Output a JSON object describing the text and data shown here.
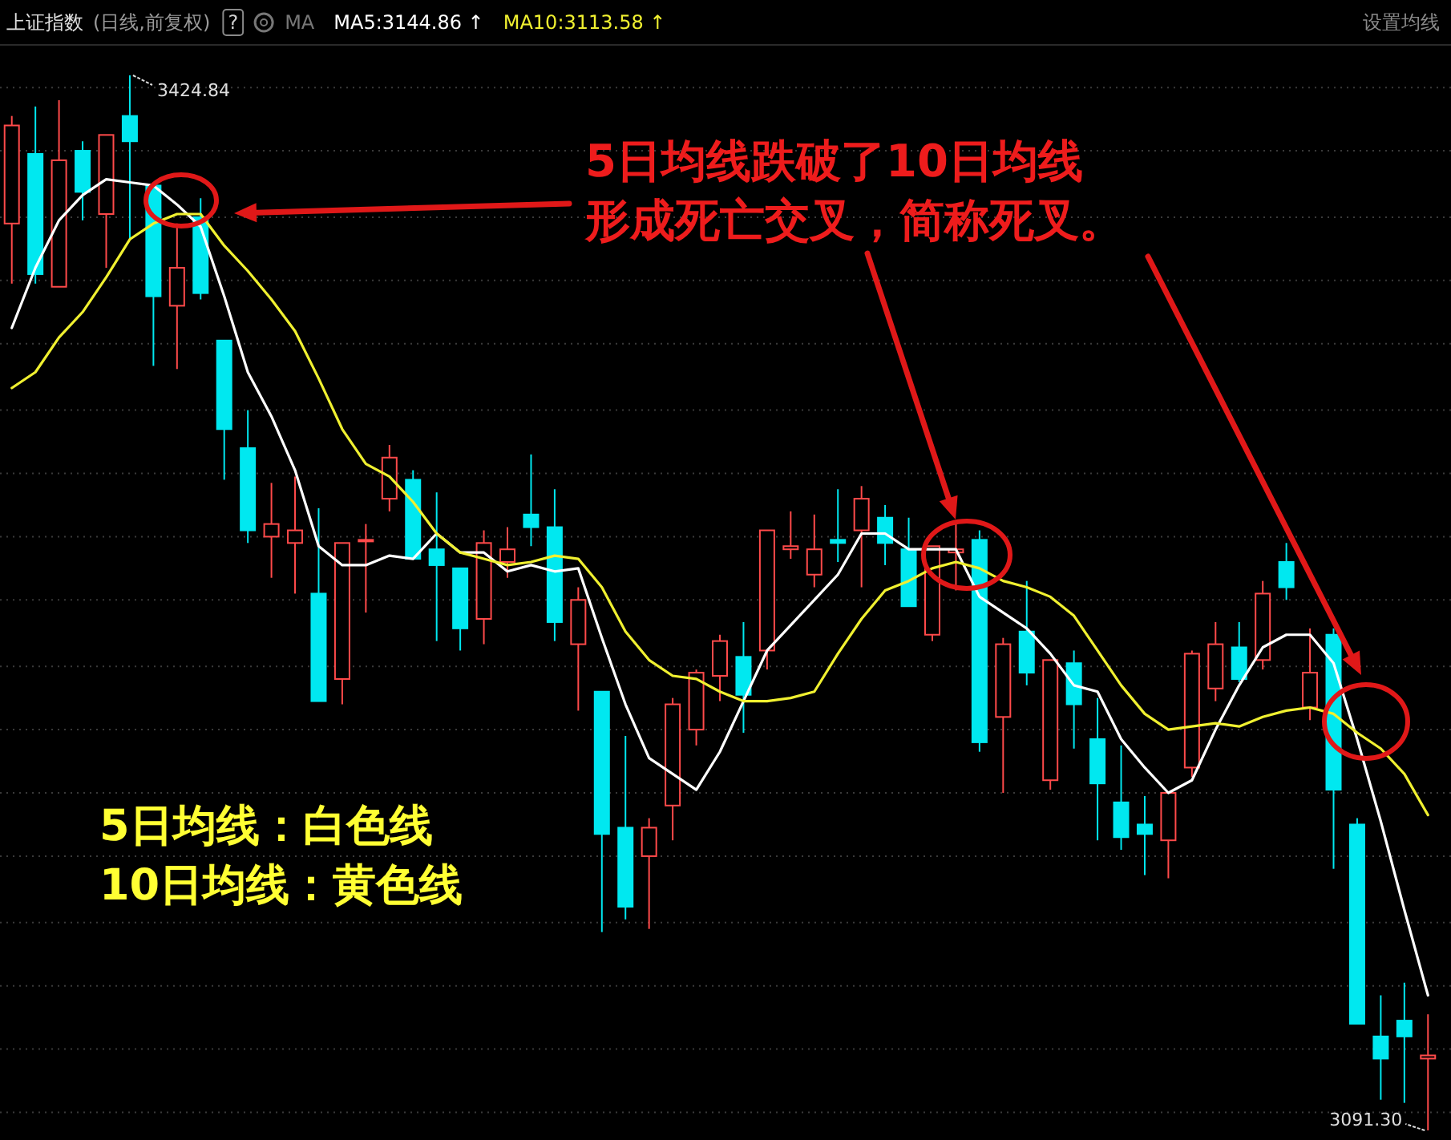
{
  "chart_data": {
    "type": "candlestick",
    "title": "上证指数",
    "subtitle": "(日线,前复权)",
    "categories": [
      null,
      null,
      null,
      null,
      null,
      null,
      null,
      null,
      null,
      null,
      null,
      null,
      null,
      null,
      null,
      null,
      null,
      null,
      null,
      null,
      null,
      null,
      null,
      null,
      null,
      null,
      null,
      null,
      null,
      null,
      null,
      null,
      null,
      null,
      null,
      null,
      null,
      null,
      null,
      null,
      null,
      null,
      null,
      null,
      null,
      null,
      null,
      null,
      null,
      null,
      null,
      null,
      null,
      null,
      null,
      null,
      null,
      null,
      null,
      null,
      null
    ],
    "ohlc": [
      [
        3378,
        3412,
        3359,
        3409
      ],
      [
        3400,
        3415,
        3359,
        3362
      ],
      [
        3358,
        3417,
        3358,
        3398
      ],
      [
        3401,
        3404,
        3379,
        3388
      ],
      [
        3381,
        3406,
        3364,
        3406
      ],
      [
        3412,
        3424.84,
        3373,
        3404
      ],
      [
        3390,
        3390,
        3333,
        3355
      ],
      [
        3352,
        3378,
        3332,
        3364
      ],
      [
        3380,
        3386,
        3354,
        3356
      ],
      [
        3341,
        3341,
        3297,
        3313
      ],
      [
        3307,
        3319,
        3277,
        3281
      ],
      [
        3279,
        3296,
        3266,
        3283
      ],
      [
        3277,
        3298,
        3261,
        3281
      ],
      [
        3261,
        3288,
        3227,
        3227
      ],
      [
        3234,
        3277,
        3226,
        3277
      ],
      [
        3278,
        3283,
        3255,
        3278
      ],
      [
        3291,
        3308,
        3287,
        3304
      ],
      [
        3297,
        3300,
        3272,
        3272
      ],
      [
        3275,
        3293,
        3246,
        3270
      ],
      [
        3269,
        3269,
        3243,
        3250
      ],
      [
        3253,
        3281,
        3245,
        3277
      ],
      [
        3271,
        3282,
        3266,
        3275
      ],
      [
        3286,
        3305,
        3276,
        3282
      ],
      [
        3282,
        3294,
        3246,
        3252
      ],
      [
        3245,
        3263,
        3224,
        3259
      ],
      [
        3230,
        3230,
        3154,
        3185
      ],
      [
        3187,
        3216,
        3158,
        3162
      ],
      [
        3178,
        3190,
        3155,
        3187
      ],
      [
        3194,
        3228,
        3183,
        3226
      ],
      [
        3218,
        3237,
        3213,
        3236
      ],
      [
        3235,
        3248,
        3227,
        3246
      ],
      [
        3241,
        3252,
        3217,
        3229
      ],
      [
        3243,
        3281,
        3237,
        3281
      ],
      [
        3275,
        3287,
        3272,
        3276
      ],
      [
        3267,
        3286,
        3263,
        3275
      ],
      [
        3278,
        3294,
        3271,
        3277
      ],
      [
        3281,
        3295,
        3263,
        3291
      ],
      [
        3285,
        3289,
        3270,
        3277
      ],
      [
        3275,
        3285,
        3257,
        3257
      ],
      [
        3248,
        3276,
        3246,
        3276
      ],
      [
        3274,
        3284,
        3262,
        3275
      ],
      [
        3278,
        3281,
        3211,
        3214
      ],
      [
        3222,
        3247,
        3198,
        3245
      ],
      [
        3249,
        3265,
        3232,
        3236
      ],
      [
        3202,
        3240,
        3199,
        3240
      ],
      [
        3239,
        3243,
        3212,
        3226
      ],
      [
        3215,
        3228,
        3183,
        3201
      ],
      [
        3195,
        3213,
        3180,
        3184
      ],
      [
        3188,
        3197,
        3172,
        3185
      ],
      [
        3183,
        3198,
        3171,
        3198
      ],
      [
        3206,
        3243,
        3203,
        3242
      ],
      [
        3231,
        3252,
        3227,
        3245
      ],
      [
        3244,
        3252,
        3233,
        3234
      ],
      [
        3240,
        3265,
        3237,
        3261
      ],
      [
        3271,
        3277,
        3259,
        3263
      ],
      [
        3225,
        3250,
        3221,
        3236
      ],
      [
        3248,
        3250,
        3174,
        3199
      ],
      [
        3188,
        3190,
        3125,
        3125
      ],
      [
        3121,
        3134,
        3101,
        3114
      ],
      [
        3126,
        3138,
        3100,
        3121
      ],
      [
        3114,
        3128,
        3091.3,
        3115
      ]
    ],
    "colors": [
      "#ff4a4a",
      "#00e8f0",
      "#ff4a4a",
      "#00e8f0",
      "#ff4a4a",
      "#00e8f0",
      "#00e8f0",
      "#ff4a4a",
      "#00e8f0",
      "#00e8f0",
      "#00e8f0",
      "#ff4a4a",
      "#ff4a4a",
      "#00e8f0",
      "#ff4a4a",
      "#ff4a4a",
      "#ff4a4a",
      "#00e8f0",
      "#00e8f0",
      "#00e8f0",
      "#ff4a4a",
      "#ff4a4a",
      "#00e8f0",
      "#00e8f0",
      "#ff4a4a",
      "#00e8f0",
      "#00e8f0",
      "#ff4a4a",
      "#ff4a4a",
      "#ff4a4a",
      "#ff4a4a",
      "#00e8f0",
      "#ff4a4a",
      "#ff4a4a",
      "#ff4a4a",
      "#00e8f0",
      "#ff4a4a",
      "#00e8f0",
      "#00e8f0",
      "#ff4a4a",
      "#ff4a4a",
      "#00e8f0",
      "#ff4a4a",
      "#00e8f0",
      "#ff4a4a",
      "#00e8f0",
      "#00e8f0",
      "#00e8f0",
      "#00e8f0",
      "#ff4a4a",
      "#ff4a4a",
      "#ff4a4a",
      "#00e8f0",
      "#ff4a4a",
      "#00e8f0",
      "#ff4a4a",
      "#00e8f0",
      "#00e8f0",
      "#00e8f0",
      "#00e8f0",
      "#ff4a4a"
    ],
    "series": [
      {
        "type": "line",
        "color": "#ffffff",
        "values": [
          3345,
          3364,
          3379,
          3387,
          3392,
          3391,
          3390,
          3384,
          3377,
          3355,
          3331,
          3317,
          3300,
          3276,
          3270,
          3270,
          3273,
          3272,
          3280,
          3274,
          3274,
          3268,
          3270,
          3268,
          3269,
          3247,
          3226,
          3209,
          3204,
          3199,
          3211,
          3227,
          3243,
          3251,
          3259,
          3267,
          3280,
          3280,
          3275,
          3275,
          3275,
          3260,
          3255,
          3250,
          3242,
          3232,
          3230,
          3215,
          3206,
          3198,
          3202,
          3218,
          3232,
          3244,
          3248,
          3248,
          3239,
          3215,
          3189,
          3161,
          3134
        ]
      },
      {
        "type": "line",
        "color": "#f0f030",
        "values": [
          3326,
          3331,
          3342,
          3350,
          3361,
          3373,
          3378,
          3381,
          3381,
          3371,
          3363,
          3354,
          3344,
          3329,
          3313,
          3302,
          3298,
          3290,
          3280,
          3274,
          3272,
          3270,
          3271,
          3273,
          3272,
          3263,
          3249,
          3240,
          3235,
          3234,
          3230,
          3227,
          3227,
          3228,
          3230,
          3242,
          3253,
          3262,
          3265,
          3269,
          3271,
          3269,
          3265,
          3263,
          3260,
          3254,
          3243,
          3232,
          3223,
          3218,
          3219,
          3220,
          3219,
          3222,
          3224,
          3225,
          3223,
          3217,
          3212,
          3204,
          3191
        ]
      }
    ],
    "yticks": [
      {
        "value": 3421,
        "label": null
      },
      {
        "value": 3401,
        "label": null
      },
      {
        "value": 3380,
        "label": null
      },
      {
        "value": 3360,
        "label": null
      },
      {
        "value": 3340,
        "label": null
      },
      {
        "value": 3319,
        "label": null
      },
      {
        "value": 3299,
        "label": null
      },
      {
        "value": 3279,
        "label": null
      },
      {
        "value": 3259,
        "label": null
      },
      {
        "value": 3238,
        "label": null
      },
      {
        "value": 3218,
        "label": null
      },
      {
        "value": 3198,
        "label": null
      },
      {
        "value": 3178,
        "label": null
      },
      {
        "value": 3157,
        "label": null
      },
      {
        "value": 3137,
        "label": null
      },
      {
        "value": 3117,
        "label": null
      },
      {
        "value": 3097,
        "label": null
      }
    ],
    "grid": "y",
    "annotations": [
      "?",
      "MA",
      "MA5:3144.86 ↑",
      "MA10:3113.58 ↑",
      "设置均线",
      "3424.84",
      "3091.30",
      "5日均线跌破了10日均线",
      "形成死亡交叉，简称死叉。",
      "5日均线：白色线",
      "10日均线：黄色线"
    ]
  }
}
